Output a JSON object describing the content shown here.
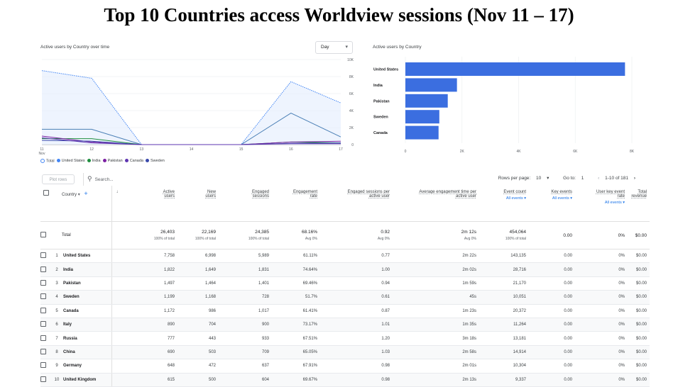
{
  "page_title": "Top 10 Countries access Worldview sessions (Nov 11 – 17)",
  "line_card": {
    "title": "Active users by Country over time",
    "granularity": "Day",
    "x_labels": [
      "11\nNov",
      "12",
      "13",
      "14",
      "15",
      "16",
      "17"
    ],
    "y_labels": [
      "10K",
      "8K",
      "6K",
      "4K",
      "2K",
      "0"
    ],
    "legend": [
      {
        "label": "Total",
        "color": "#4285f4"
      },
      {
        "label": "United States",
        "color": "#4285f4"
      },
      {
        "label": "India",
        "color": "#1e8e3e"
      },
      {
        "label": "Pakistan",
        "color": "#7b1fa2"
      },
      {
        "label": "Canada",
        "color": "#5e35b1"
      },
      {
        "label": "Sweden",
        "color": "#3949ab"
      }
    ]
  },
  "bar_card": {
    "title": "Active users by Country",
    "x_labels": [
      "0",
      "2K",
      "4K",
      "6K",
      "8K"
    ]
  },
  "chart_data": [
    {
      "type": "line",
      "title": "Active users by Country over time",
      "x": [
        "11 Nov",
        "12",
        "13",
        "14",
        "15",
        "16",
        "17"
      ],
      "ylim": [
        0,
        10000
      ],
      "series": [
        {
          "name": "Total",
          "values": [
            8700,
            7800,
            0,
            0,
            0,
            7400,
            4900
          ]
        },
        {
          "name": "United States",
          "values": [
            1800,
            1800,
            0,
            0,
            0,
            3700,
            900
          ]
        },
        {
          "name": "India",
          "values": [
            700,
            700,
            0,
            0,
            0,
            300,
            200
          ]
        },
        {
          "name": "Pakistan",
          "values": [
            1000,
            300,
            0,
            0,
            0,
            300,
            400
          ]
        },
        {
          "name": "Sweden",
          "values": [
            500,
            400,
            0,
            0,
            0,
            150,
            200
          ]
        },
        {
          "name": "Canada",
          "values": [
            800,
            200,
            0,
            0,
            0,
            100,
            100
          ]
        }
      ]
    },
    {
      "type": "bar",
      "title": "Active users by Country",
      "categories": [
        "United States",
        "India",
        "Pakistan",
        "Sweden",
        "Canada"
      ],
      "values": [
        7758,
        1822,
        1497,
        1199,
        1172
      ],
      "xlim": [
        0,
        8000
      ],
      "color": "#3b6ee0"
    }
  ],
  "toolbar": {
    "plot_rows": "Plot rows",
    "search_placeholder": "Search...",
    "rows_per_page_label": "Rows per page:",
    "rows_per_page": "10",
    "goto_label": "Go to:",
    "goto_value": "1",
    "range": "1-10 of 181"
  },
  "table": {
    "dimension_header": "Country",
    "columns": [
      {
        "l1": "Active",
        "l2": "users",
        "sub": ""
      },
      {
        "l1": "New",
        "l2": "users",
        "sub": ""
      },
      {
        "l1": "Engaged",
        "l2": "sessions",
        "sub": ""
      },
      {
        "l1": "Engagement",
        "l2": "rate",
        "sub": ""
      },
      {
        "l1": "Engaged sessions per",
        "l2": "active user",
        "sub": ""
      },
      {
        "l1": "Average engagement time per",
        "l2": "active user",
        "sub": ""
      },
      {
        "l1": "Event count",
        "l2": "",
        "sub": "All events"
      },
      {
        "l1": "Key events",
        "l2": "",
        "sub": "All events"
      },
      {
        "l1": "User key event",
        "l2": "rate",
        "sub": "All events"
      },
      {
        "l1": "Total",
        "l2": "revenue",
        "sub": ""
      }
    ],
    "total": {
      "label": "Total",
      "values": [
        "26,403",
        "22,169",
        "24,385",
        "68.16%",
        "0.92",
        "2m 12s",
        "454,064",
        "0.00",
        "0%",
        "$0.00"
      ],
      "subs": [
        "100% of total",
        "100% of total",
        "100% of total",
        "Avg 0%",
        "Avg 0%",
        "Avg 0%",
        "100% of total",
        "",
        "",
        ""
      ]
    },
    "rows": [
      {
        "rank": "1",
        "country": "United States",
        "values": [
          "7,758",
          "6,998",
          "5,989",
          "61.11%",
          "0.77",
          "2m 22s",
          "143,135",
          "0.00",
          "0%",
          "$0.00"
        ]
      },
      {
        "rank": "2",
        "country": "India",
        "values": [
          "1,822",
          "1,649",
          "1,831",
          "74.64%",
          "1.00",
          "2m 02s",
          "28,716",
          "0.00",
          "0%",
          "$0.00"
        ]
      },
      {
        "rank": "3",
        "country": "Pakistan",
        "values": [
          "1,497",
          "1,464",
          "1,401",
          "69.46%",
          "0.94",
          "1m 59s",
          "21,170",
          "0.00",
          "0%",
          "$0.00"
        ]
      },
      {
        "rank": "4",
        "country": "Sweden",
        "values": [
          "1,199",
          "1,168",
          "728",
          "51.7%",
          "0.61",
          "45s",
          "10,051",
          "0.00",
          "0%",
          "$0.00"
        ]
      },
      {
        "rank": "5",
        "country": "Canada",
        "values": [
          "1,172",
          "986",
          "1,017",
          "61.41%",
          "0.87",
          "1m 23s",
          "20,372",
          "0.00",
          "0%",
          "$0.00"
        ]
      },
      {
        "rank": "6",
        "country": "Italy",
        "values": [
          "890",
          "704",
          "900",
          "73.17%",
          "1.01",
          "1m 35s",
          "11,264",
          "0.00",
          "0%",
          "$0.00"
        ]
      },
      {
        "rank": "7",
        "country": "Russia",
        "values": [
          "777",
          "443",
          "933",
          "67.51%",
          "1.20",
          "3m 18s",
          "13,181",
          "0.00",
          "0%",
          "$0.00"
        ]
      },
      {
        "rank": "8",
        "country": "China",
        "values": [
          "690",
          "503",
          "709",
          "65.05%",
          "1.03",
          "2m 58s",
          "14,914",
          "0.00",
          "0%",
          "$0.00"
        ]
      },
      {
        "rank": "9",
        "country": "Germany",
        "values": [
          "648",
          "472",
          "637",
          "67.91%",
          "0.98",
          "2m 01s",
          "10,304",
          "0.00",
          "0%",
          "$0.00"
        ]
      },
      {
        "rank": "10",
        "country": "United Kingdom",
        "values": [
          "615",
          "500",
          "604",
          "69.67%",
          "0.98",
          "2m 13s",
          "9,337",
          "0.00",
          "0%",
          "$0.00"
        ]
      }
    ]
  }
}
